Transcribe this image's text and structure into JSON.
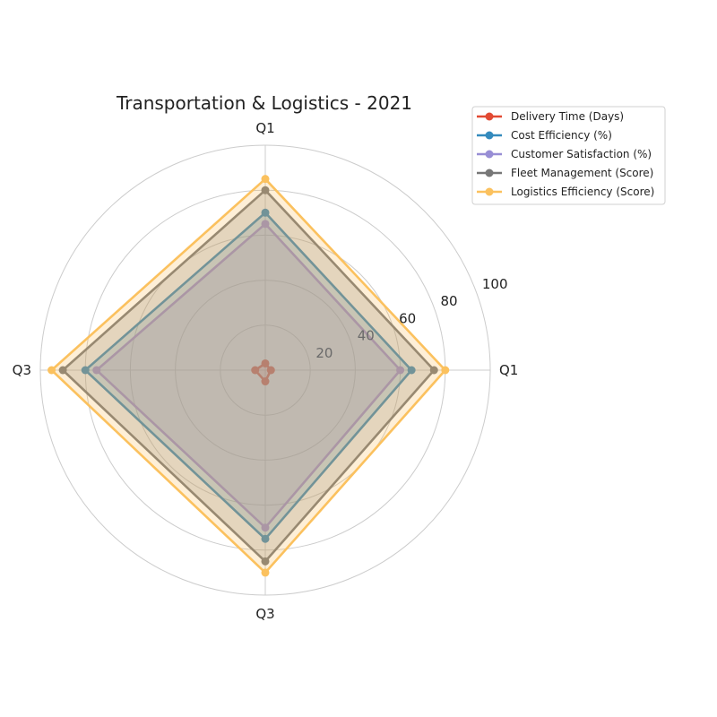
{
  "chart_data": {
    "type": "radar",
    "title": "Transportation & Logistics - 2021",
    "axes": [
      "Q1",
      "Q1",
      "Q3",
      "Q3"
    ],
    "rlim": [
      0,
      100
    ],
    "rticks": [
      20,
      40,
      60,
      80,
      100
    ],
    "grid": true,
    "legend_position": "top-right",
    "series": [
      {
        "name": "Delivery Time (Days)",
        "color": "#e24a33",
        "values": [
          2.5,
          3,
          4.5,
          5
        ]
      },
      {
        "name": "Cost Efficiency (%)",
        "color": "#348abd",
        "values": [
          65,
          70,
          80,
          75
        ]
      },
      {
        "name": "Customer Satisfaction (%)",
        "color": "#988ed5",
        "values": [
          60,
          65,
          75,
          70
        ]
      },
      {
        "name": "Fleet Management (Score)",
        "color": "#777777",
        "values": [
          75,
          80,
          90,
          85
        ]
      },
      {
        "name": "Logistics Efficiency (Score)",
        "color": "#fbc15e",
        "values": [
          80,
          85,
          95,
          90
        ]
      }
    ]
  }
}
